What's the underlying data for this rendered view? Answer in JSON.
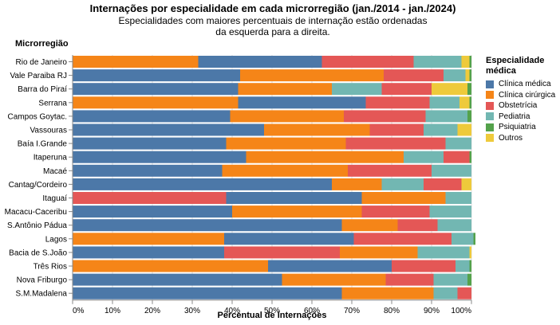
{
  "chart_data": {
    "type": "bar",
    "orientation": "horizontal",
    "stacked": "normalized",
    "title": "Internações por especialidade em cada microrregião (jan./2014 - jan./2024)",
    "subtitle": [
      "Especialidades com maiores percentuais de internação estão ordenadas",
      "da esquerda para a direita."
    ],
    "xlabel": "Percentual de internações",
    "ylabel": "Microrregião",
    "xlim": [
      0,
      100
    ],
    "x_ticks": [
      "0%",
      "10%",
      "20%",
      "30%",
      "40%",
      "50%",
      "60%",
      "70%",
      "80%",
      "90%",
      "100%"
    ],
    "grid": true,
    "legend": {
      "title": "Especialidade médica",
      "position": "right",
      "entries": [
        {
          "name": "Clínica médica",
          "color": "#4c78a8"
        },
        {
          "name": "Clínica cirúrgica",
          "color": "#f58518"
        },
        {
          "name": "Obstetrícia",
          "color": "#e45756"
        },
        {
          "name": "Pediatria",
          "color": "#72b7b2"
        },
        {
          "name": "Psiquiatria",
          "color": "#54a24b"
        },
        {
          "name": "Outros",
          "color": "#eeca3b"
        }
      ]
    },
    "categories": [
      "Rio de Janeiro",
      "Vale Paraiba RJ",
      "Barra do Piraí",
      "Serrana",
      "Campos Goytac.",
      "Vassouras",
      "Baía I.Grande",
      "Itaperuna",
      "Macaé",
      "Cantag/Cordeiro",
      "Itaguaí",
      "Macacu-Caceribu",
      "S.Antônio Pádua",
      "Lagos",
      "Bacia de S.João",
      "Três Rios",
      "Nova Friburgo",
      "S.M.Madalena"
    ],
    "rows": [
      [
        {
          "s": "Clínica cirúrgica",
          "v": 31.5
        },
        {
          "s": "Clínica médica",
          "v": 31.0
        },
        {
          "s": "Obstetrícia",
          "v": 23.0
        },
        {
          "s": "Pediatria",
          "v": 12.0
        },
        {
          "s": "Outros",
          "v": 2.0
        },
        {
          "s": "Psiquiatria",
          "v": 0.5
        }
      ],
      [
        {
          "s": "Clínica médica",
          "v": 42.0
        },
        {
          "s": "Clínica cirúrgica",
          "v": 36.0
        },
        {
          "s": "Obstetrícia",
          "v": 15.0
        },
        {
          "s": "Pediatria",
          "v": 5.5
        },
        {
          "s": "Outros",
          "v": 1.0
        },
        {
          "s": "Psiquiatria",
          "v": 0.5
        }
      ],
      [
        {
          "s": "Clínica médica",
          "v": 41.5
        },
        {
          "s": "Clínica cirúrgica",
          "v": 23.5
        },
        {
          "s": "Pediatria",
          "v": 12.5
        },
        {
          "s": "Obstetrícia",
          "v": 12.5
        },
        {
          "s": "Outros",
          "v": 9.0
        },
        {
          "s": "Psiquiatria",
          "v": 1.0
        }
      ],
      [
        {
          "s": "Clínica cirúrgica",
          "v": 41.5
        },
        {
          "s": "Clínica médica",
          "v": 32.0
        },
        {
          "s": "Obstetrícia",
          "v": 16.0
        },
        {
          "s": "Pediatria",
          "v": 7.5
        },
        {
          "s": "Outros",
          "v": 2.5
        },
        {
          "s": "Psiquiatria",
          "v": 0.5
        }
      ],
      [
        {
          "s": "Clínica médica",
          "v": 39.5
        },
        {
          "s": "Clínica cirúrgica",
          "v": 28.5
        },
        {
          "s": "Obstetrícia",
          "v": 20.5
        },
        {
          "s": "Pediatria",
          "v": 10.5
        },
        {
          "s": "Psiquiatria",
          "v": 1.0
        }
      ],
      [
        {
          "s": "Clínica médica",
          "v": 48.0
        },
        {
          "s": "Clínica cirúrgica",
          "v": 26.5
        },
        {
          "s": "Obstetrícia",
          "v": 13.5
        },
        {
          "s": "Pediatria",
          "v": 8.5
        },
        {
          "s": "Outros",
          "v": 3.5
        }
      ],
      [
        {
          "s": "Clínica médica",
          "v": 38.5
        },
        {
          "s": "Clínica cirúrgica",
          "v": 30.0
        },
        {
          "s": "Obstetrícia",
          "v": 25.0
        },
        {
          "s": "Pediatria",
          "v": 6.5
        }
      ],
      [
        {
          "s": "Clínica médica",
          "v": 43.5
        },
        {
          "s": "Clínica cirúrgica",
          "v": 39.5
        },
        {
          "s": "Pediatria",
          "v": 10.0
        },
        {
          "s": "Obstetrícia",
          "v": 6.5
        },
        {
          "s": "Psiquiatria",
          "v": 0.5
        }
      ],
      [
        {
          "s": "Clínica médica",
          "v": 37.5
        },
        {
          "s": "Clínica cirúrgica",
          "v": 31.5
        },
        {
          "s": "Obstetrícia",
          "v": 21.0
        },
        {
          "s": "Pediatria",
          "v": 10.0
        }
      ],
      [
        {
          "s": "Clínica médica",
          "v": 65.0
        },
        {
          "s": "Clínica cirúrgica",
          "v": 12.5
        },
        {
          "s": "Pediatria",
          "v": 10.5
        },
        {
          "s": "Obstetrícia",
          "v": 9.5
        },
        {
          "s": "Outros",
          "v": 2.5
        }
      ],
      [
        {
          "s": "Obstetrícia",
          "v": 38.5
        },
        {
          "s": "Clínica médica",
          "v": 34.0
        },
        {
          "s": "Clínica cirúrgica",
          "v": 21.0
        },
        {
          "s": "Pediatria",
          "v": 6.5
        }
      ],
      [
        {
          "s": "Clínica médica",
          "v": 40.0
        },
        {
          "s": "Clínica cirúrgica",
          "v": 32.5
        },
        {
          "s": "Obstetrícia",
          "v": 17.0
        },
        {
          "s": "Pediatria",
          "v": 10.5
        }
      ],
      [
        {
          "s": "Clínica médica",
          "v": 67.5
        },
        {
          "s": "Clínica cirúrgica",
          "v": 14.0
        },
        {
          "s": "Obstetrícia",
          "v": 10.0
        },
        {
          "s": "Pediatria",
          "v": 8.5
        }
      ],
      [
        {
          "s": "Clínica cirúrgica",
          "v": 38.0
        },
        {
          "s": "Clínica médica",
          "v": 32.5
        },
        {
          "s": "Obstetrícia",
          "v": 24.5
        },
        {
          "s": "Pediatria",
          "v": 5.5
        },
        {
          "s": "Psiquiatria",
          "v": 0.5
        }
      ],
      [
        {
          "s": "Clínica médica",
          "v": 38.0
        },
        {
          "s": "Obstetrícia",
          "v": 29.0
        },
        {
          "s": "Clínica cirúrgica",
          "v": 19.5
        },
        {
          "s": "Pediatria",
          "v": 13.0
        },
        {
          "s": "Outros",
          "v": 0.5
        }
      ],
      [
        {
          "s": "Clínica cirúrgica",
          "v": 49.0
        },
        {
          "s": "Clínica médica",
          "v": 31.0
        },
        {
          "s": "Obstetrícia",
          "v": 16.0
        },
        {
          "s": "Pediatria",
          "v": 3.5
        },
        {
          "s": "Psiquiatria",
          "v": 0.5
        }
      ],
      [
        {
          "s": "Clínica médica",
          "v": 52.5
        },
        {
          "s": "Clínica cirúrgica",
          "v": 26.0
        },
        {
          "s": "Obstetrícia",
          "v": 12.0
        },
        {
          "s": "Pediatria",
          "v": 8.5
        },
        {
          "s": "Psiquiatria",
          "v": 1.0
        }
      ],
      [
        {
          "s": "Clínica médica",
          "v": 67.5
        },
        {
          "s": "Clínica cirúrgica",
          "v": 23.0
        },
        {
          "s": "Pediatria",
          "v": 6.0
        },
        {
          "s": "Obstetrícia",
          "v": 3.5
        }
      ]
    ]
  }
}
